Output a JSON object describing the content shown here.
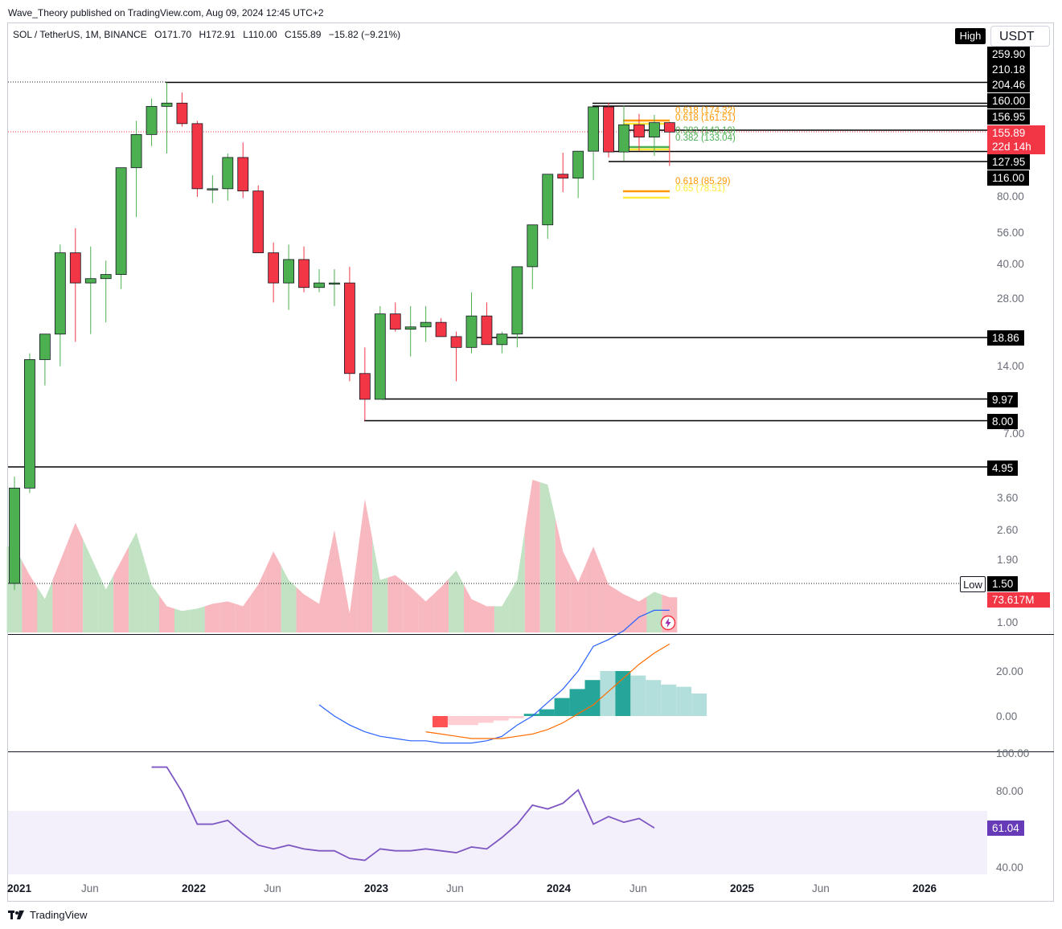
{
  "published": "Wave_Theory published on TradingView.com, Aug 09, 2024 12:45 UTC+2",
  "symbol_info": "SOL / TetherUS, 1M, BINANCE",
  "ohlc": {
    "o_label": "O",
    "o": "171.70",
    "h_label": "H",
    "h": "172.91",
    "l_label": "L",
    "l": "110.00",
    "c_label": "C",
    "c": "155.89",
    "change": "−15.82 (−9.21%)"
  },
  "header_buttons": {
    "high": "High",
    "currency": "USDT"
  },
  "price_scale": {
    "ticks": [
      "80.00",
      "56.00",
      "40.00",
      "28.00",
      "14.00",
      "7.00",
      "3.60",
      "2.60",
      "1.90",
      "1.00"
    ],
    "level_labels": [
      "259.90",
      "210.18",
      "204.46",
      "160.00",
      "156.95",
      "127.95",
      "116.00",
      "18.86",
      "9.97",
      "8.00",
      "4.95"
    ],
    "last_price": "155.89",
    "countdown": "22d 14h",
    "low_pill": "Low",
    "low_value": "1.50",
    "volume_value": "73.617M"
  },
  "fib_labels": [
    {
      "text": "0.618 (174.32)",
      "color": "#ff9800"
    },
    {
      "text": "0.618 (161.51)",
      "color": "#ff9800"
    },
    {
      "text": "0.382 (143.10)",
      "color": "#4caf50"
    },
    {
      "text": "0.382 (133.04)",
      "color": "#4caf50"
    },
    {
      "text": "0.618 (85.29)",
      "color": "#ff9800"
    },
    {
      "text": "0.65 (78.51)",
      "color": "#ffeb3b"
    }
  ],
  "macd_scale": [
    "20.00",
    "0.00"
  ],
  "rsi_scale": [
    "100.00",
    "80.00",
    "40.00"
  ],
  "rsi_value": "61.04",
  "x_axis": [
    "2021",
    "Jun",
    "2022",
    "Jun",
    "2023",
    "Jun",
    "2024",
    "Jun",
    "2025",
    "Jun",
    "2026"
  ],
  "footer_brand": "TradingView",
  "colors": {
    "up": "#4caf50",
    "down": "#f23645",
    "level": "#000000",
    "macd": "#2962ff",
    "signal": "#ff6d00",
    "rsi": "#7e57c2"
  },
  "chart_data": [
    {
      "type": "candlestick",
      "title": "SOL / TetherUS, 1M, BINANCE",
      "scale": "log",
      "ylim": [
        1.0,
        260
      ],
      "x": [
        "2021-01",
        "2021-02",
        "2021-03",
        "2021-04",
        "2021-05",
        "2021-06",
        "2021-07",
        "2021-08",
        "2021-09",
        "2021-10",
        "2021-11",
        "2021-12",
        "2022-01",
        "2022-02",
        "2022-03",
        "2022-04",
        "2022-05",
        "2022-06",
        "2022-07",
        "2022-08",
        "2022-09",
        "2022-10",
        "2022-11",
        "2022-12",
        "2023-01",
        "2023-02",
        "2023-03",
        "2023-04",
        "2023-05",
        "2023-06",
        "2023-07",
        "2023-08",
        "2023-09",
        "2023-10",
        "2023-11",
        "2023-12",
        "2024-01",
        "2024-02",
        "2024-03",
        "2024-04",
        "2024-05",
        "2024-06",
        "2024-07",
        "2024-08"
      ],
      "open": [
        1.5,
        4.0,
        15.0,
        19.5,
        45.0,
        33.0,
        34.5,
        36.0,
        108.0,
        152.0,
        203.0,
        210.0,
        170.0,
        87.0,
        87.0,
        120.0,
        85.0,
        45.0,
        33.0,
        42.0,
        31.5,
        33.0,
        33.0,
        13.0,
        9.97,
        24.0,
        20.5,
        21.0,
        22.0,
        19.0,
        17.0,
        23.5,
        17.5,
        19.5,
        39.0,
        60.0,
        101.0,
        97.0,
        128.0,
        202.0,
        127.0,
        168.0,
        148.0,
        171.7
      ],
      "high": [
        4.5,
        16.0,
        17.5,
        49.0,
        58.0,
        48.0,
        41.5,
        75.0,
        175.0,
        220.0,
        259.9,
        234.0,
        175.0,
        100.0,
        125.0,
        140.0,
        90.0,
        50.0,
        49.0,
        48.0,
        38.0,
        38.0,
        39.0,
        17.0,
        26.0,
        27.0,
        26.0,
        26.0,
        23.0,
        20.0,
        30.0,
        27.0,
        20.0,
        20.5,
        43.0,
        68.0,
        126.0,
        117.0,
        127.0,
        210.18,
        204.46,
        188.0,
        186.0,
        172.91
      ],
      "low": [
        1.4,
        3.8,
        11.5,
        14.0,
        18.0,
        19.5,
        22.0,
        31.0,
        65.0,
        135.0,
        125.0,
        165.0,
        80.0,
        75.0,
        77.0,
        79.0,
        52.0,
        27.0,
        25.0,
        30.0,
        30.0,
        26.0,
        12.0,
        8.0,
        9.97,
        20.0,
        15.5,
        18.0,
        19.0,
        12.0,
        16.0,
        17.5,
        16.0,
        17.0,
        31.0,
        52.0,
        84.0,
        79.0,
        95.0,
        120.0,
        116.0,
        127.95,
        122.0,
        110.0
      ]
    },
    {
      "type": "area",
      "title": "Volume",
      "values_millions": [
        180,
        120,
        70,
        150,
        230,
        160,
        90,
        150,
        210,
        100,
        55,
        45,
        50,
        60,
        65,
        55,
        100,
        170,
        110,
        80,
        60,
        215,
        40,
        280,
        110,
        120,
        95,
        65,
        95,
        130,
        70,
        55,
        55,
        110,
        320,
        310,
        170,
        105,
        180,
        100,
        80,
        65,
        85,
        73.617
      ]
    },
    {
      "type": "line",
      "title": "MACD",
      "series": [
        {
          "name": "MACD",
          "values": [
            null,
            null,
            null,
            null,
            null,
            null,
            null,
            null,
            null,
            null,
            null,
            null,
            null,
            null,
            null,
            null,
            null,
            null,
            null,
            null,
            5,
            0,
            -4,
            -7,
            -9,
            -10,
            -11,
            -11,
            -12,
            -12,
            -12,
            -11,
            -9,
            -4,
            0,
            6,
            12,
            20,
            31,
            34,
            38,
            44,
            47,
            47
          ]
        },
        {
          "name": "Signal",
          "values": [
            null,
            null,
            null,
            null,
            null,
            null,
            null,
            null,
            null,
            null,
            null,
            null,
            null,
            null,
            null,
            null,
            null,
            null,
            null,
            null,
            null,
            null,
            null,
            null,
            null,
            null,
            null,
            -7,
            -8,
            -9,
            -10,
            -10,
            -10,
            -9,
            -8,
            -6,
            -3,
            1,
            5,
            11,
            17,
            23,
            28,
            32
          ]
        }
      ],
      "histogram": [
        -5,
        -4,
        -4,
        -3,
        -2,
        -1,
        1,
        3,
        8,
        12,
        16,
        20,
        20,
        18,
        16,
        14,
        13,
        10
      ],
      "ylim": [
        -15,
        50
      ]
    },
    {
      "type": "line",
      "title": "RSI",
      "values": [
        93,
        93,
        80,
        63,
        63,
        65,
        58,
        52,
        50,
        52,
        50,
        49,
        49,
        45,
        44,
        50,
        49,
        49,
        50,
        49,
        48,
        51,
        50,
        56,
        63,
        73,
        71,
        74,
        81,
        63,
        67,
        64,
        66,
        61.04
      ],
      "ylim": [
        40,
        100
      ]
    }
  ]
}
